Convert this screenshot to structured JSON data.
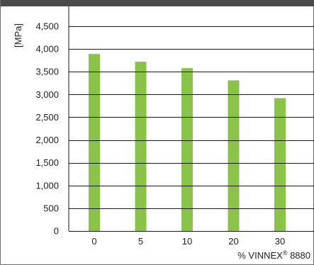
{
  "chart_data": {
    "type": "bar",
    "title": "",
    "xlabel": "% VINNEX® 8880",
    "ylabel": "[MPa]",
    "categories": [
      "0",
      "5",
      "10",
      "20",
      "30"
    ],
    "values": [
      3890,
      3720,
      3580,
      3310,
      2920
    ],
    "ylim": [
      0,
      4500
    ],
    "yticks": [
      0,
      500,
      1000,
      1500,
      2000,
      2500,
      3000,
      3500,
      4000,
      4500
    ],
    "ytick_labels": [
      "0",
      "500",
      "1,000",
      "1,500",
      "2,000",
      "2,500",
      "3,000",
      "3,500",
      "4,000",
      "4,500"
    ],
    "grid": "horizontal",
    "legend": "none",
    "colors": {
      "bar": "#8bc34a",
      "grid": "#1a1a1a",
      "header": "#4a4a4a",
      "frame": "#6d6d6d"
    }
  }
}
